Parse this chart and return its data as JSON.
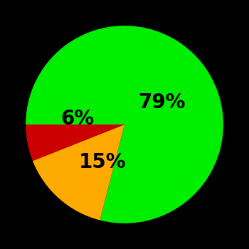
{
  "slices": [
    79,
    15,
    6
  ],
  "colors": [
    "#00ee00",
    "#ffaa00",
    "#cc0000"
  ],
  "labels": [
    "79%",
    "15%",
    "6%"
  ],
  "background_color": "#000000",
  "startangle": 180,
  "label_fontsize": 20,
  "label_fontweight": "bold"
}
